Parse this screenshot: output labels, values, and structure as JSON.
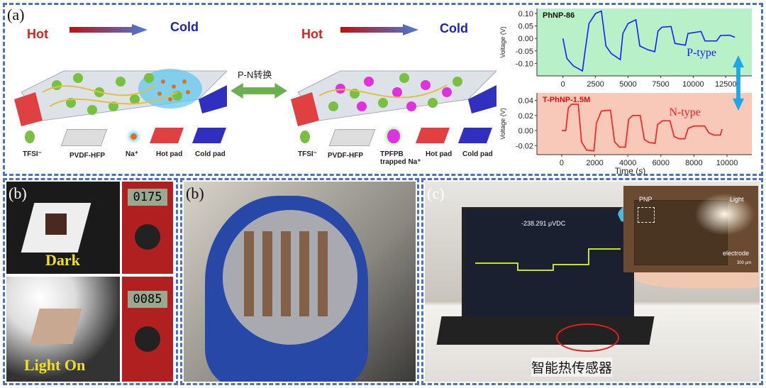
{
  "panel_a": {
    "label": "(a)",
    "left_schematic": {
      "hot": "Hot",
      "cold": "Cold"
    },
    "right_schematic": {
      "hot": "Hot",
      "cold": "Cold"
    },
    "conversion_label": "P-N转换",
    "legend_left": [
      "TFSI⁻",
      "PVDF-HFP",
      "Na⁺",
      "Hot pad",
      "Cold pad"
    ],
    "legend_right": [
      "TFSI⁻",
      "PVDF-HFP",
      "TPFPB trapped Na⁺",
      "Hot pad",
      "Cold pad"
    ]
  },
  "chart_data": [
    {
      "type": "line",
      "title": "PhNP-86",
      "annotation": "P-type",
      "ylabel": "Voltage (V)",
      "xlabel": "",
      "xlim": [
        -2000,
        14500
      ],
      "ylim": [
        -0.15,
        0.12
      ],
      "xticks": [
        0,
        2500,
        5000,
        7500,
        10000,
        12500
      ],
      "yticks": [
        0.1,
        0.05,
        0.0,
        -0.05,
        -0.1
      ],
      "ytick_labels": [
        "0.10",
        "0.05",
        "0.00",
        "-0.05",
        "-0.10"
      ],
      "background": "#b8f0c8",
      "color": "#1a1aff",
      "x": [
        0,
        300,
        800,
        1500,
        1700,
        2000,
        2500,
        2950,
        3300,
        3700,
        4400,
        4600,
        5000,
        5600,
        5900,
        6500,
        7050,
        7300,
        7600,
        8300,
        8600,
        9400,
        9600,
        10600,
        10900,
        11800,
        12100,
        12800,
        13200
      ],
      "y": [
        0,
        -0.08,
        -0.11,
        -0.13,
        -0.05,
        0.06,
        0.1,
        0.11,
        -0.03,
        -0.06,
        -0.085,
        0.02,
        0.06,
        0.075,
        -0.03,
        -0.045,
        -0.053,
        0.03,
        0.045,
        0.048,
        -0.02,
        -0.027,
        0.02,
        0.028,
        -0.01,
        -0.01,
        0.012,
        0.013,
        0.005
      ]
    },
    {
      "type": "line",
      "title": "T-PhNP-1.5M",
      "annotation": "N-type",
      "ylabel": "Voltage (V)",
      "xlabel": "Time (s)",
      "xlim": [
        -1500,
        11500
      ],
      "ylim": [
        -0.032,
        0.05
      ],
      "xticks": [
        0,
        2000,
        4000,
        6000,
        8000,
        10000
      ],
      "yticks": [
        0.04,
        0.02,
        0.0,
        -0.02
      ],
      "ytick_labels": [
        "0.04",
        "0.02",
        "0.00",
        "-0.02"
      ],
      "background": "#f8c8b8",
      "color": "#ff1a1a",
      "x": [
        0,
        250,
        400,
        600,
        1000,
        1200,
        1500,
        1950,
        2100,
        2400,
        2950,
        3200,
        3500,
        3850,
        4050,
        4300,
        4750,
        5000,
        5300,
        5650,
        5800,
        6100,
        6550,
        6800,
        7100,
        7450,
        7650,
        8000,
        8650,
        8900,
        9200,
        9600,
        9700
      ],
      "y": [
        0,
        0,
        0.03,
        0.035,
        0.035,
        -0.015,
        -0.026,
        -0.027,
        0.01,
        0.026,
        0.027,
        -0.015,
        -0.022,
        -0.022,
        0.015,
        0.02,
        0.02,
        -0.012,
        -0.016,
        -0.017,
        0.008,
        0.013,
        0.013,
        -0.008,
        -0.011,
        -0.011,
        0.003,
        0.006,
        0.006,
        -0.003,
        -0.006,
        -0.006,
        0.002
      ]
    }
  ],
  "panel_b1": {
    "label": "(b)",
    "top_caption": "Dark",
    "bottom_caption": "Light On",
    "meter_top": "0175",
    "meter_bottom": "0085"
  },
  "panel_b2": {
    "label": "(b)"
  },
  "panel_c": {
    "label": "(c)",
    "screen_readout": "-238.291 μVDC",
    "inset": {
      "pnp": "PNP",
      "light": "Light",
      "electrode": "electrode",
      "scale": "300 μm"
    },
    "caption": "智能热传感器"
  },
  "colors": {
    "frame": "#4a72c4",
    "hot": "#e02020",
    "cold": "#2020c0",
    "arrow_green": "#6ab04c",
    "arrow_blue": "#1aa8e8"
  }
}
